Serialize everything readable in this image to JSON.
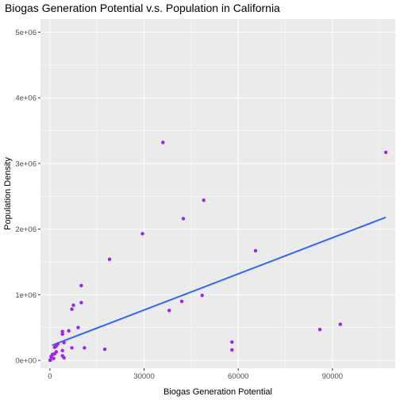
{
  "chart_data": {
    "type": "scatter",
    "title": "Biogas Generation Potential v.s. Population in California",
    "xlabel": "Biogas Generation Potential",
    "ylabel": "Population Density",
    "xlim": [
      -3000,
      110000
    ],
    "ylim": [
      -120000,
      5200000
    ],
    "x_ticks": [
      0,
      30000,
      60000,
      90000
    ],
    "x_tick_labels": [
      "0",
      "30000",
      "60000",
      "90000"
    ],
    "y_ticks": [
      0,
      1000000,
      2000000,
      3000000,
      4000000,
      5000000
    ],
    "y_tick_labels": [
      "0e+00",
      "1e+06",
      "2e+06",
      "3e+06",
      "4e+06",
      "5e+06"
    ],
    "grid": true,
    "point_color": "#a020f0",
    "line_color": "#3366ff",
    "panel_background": "#ebebeb",
    "grid_color": "#ffffff",
    "points": [
      {
        "x": 107000,
        "y": 3170000
      },
      {
        "x": 36000,
        "y": 3320000
      },
      {
        "x": 49000,
        "y": 2440000
      },
      {
        "x": 42500,
        "y": 2160000
      },
      {
        "x": 29500,
        "y": 1930000
      },
      {
        "x": 65500,
        "y": 1670000
      },
      {
        "x": 19000,
        "y": 1540000
      },
      {
        "x": 10000,
        "y": 1140000
      },
      {
        "x": 48500,
        "y": 990000
      },
      {
        "x": 42000,
        "y": 900000
      },
      {
        "x": 10000,
        "y": 880000
      },
      {
        "x": 7500,
        "y": 840000
      },
      {
        "x": 7000,
        "y": 780000
      },
      {
        "x": 38000,
        "y": 760000
      },
      {
        "x": 92500,
        "y": 550000
      },
      {
        "x": 9000,
        "y": 500000
      },
      {
        "x": 86000,
        "y": 470000
      },
      {
        "x": 6000,
        "y": 450000
      },
      {
        "x": 4000,
        "y": 440000
      },
      {
        "x": 4000,
        "y": 400000
      },
      {
        "x": 58000,
        "y": 280000
      },
      {
        "x": 4500,
        "y": 270000
      },
      {
        "x": 2500,
        "y": 250000
      },
      {
        "x": 2000,
        "y": 220000
      },
      {
        "x": 1500,
        "y": 200000
      },
      {
        "x": 11000,
        "y": 190000
      },
      {
        "x": 7000,
        "y": 190000
      },
      {
        "x": 17500,
        "y": 170000
      },
      {
        "x": 58000,
        "y": 160000
      },
      {
        "x": 4000,
        "y": 150000
      },
      {
        "x": 2000,
        "y": 130000
      },
      {
        "x": 1500,
        "y": 100000
      },
      {
        "x": 800,
        "y": 90000
      },
      {
        "x": 4000,
        "y": 70000
      },
      {
        "x": 400,
        "y": 60000
      },
      {
        "x": 4500,
        "y": 40000
      },
      {
        "x": 1200,
        "y": 30000
      },
      {
        "x": 200,
        "y": 10000
      },
      {
        "x": 100,
        "y": 5000
      },
      {
        "x": 50,
        "y": 1000
      }
    ],
    "fit_line": [
      {
        "x": 700,
        "y": 230000
      },
      {
        "x": 107000,
        "y": 2180000
      }
    ]
  }
}
